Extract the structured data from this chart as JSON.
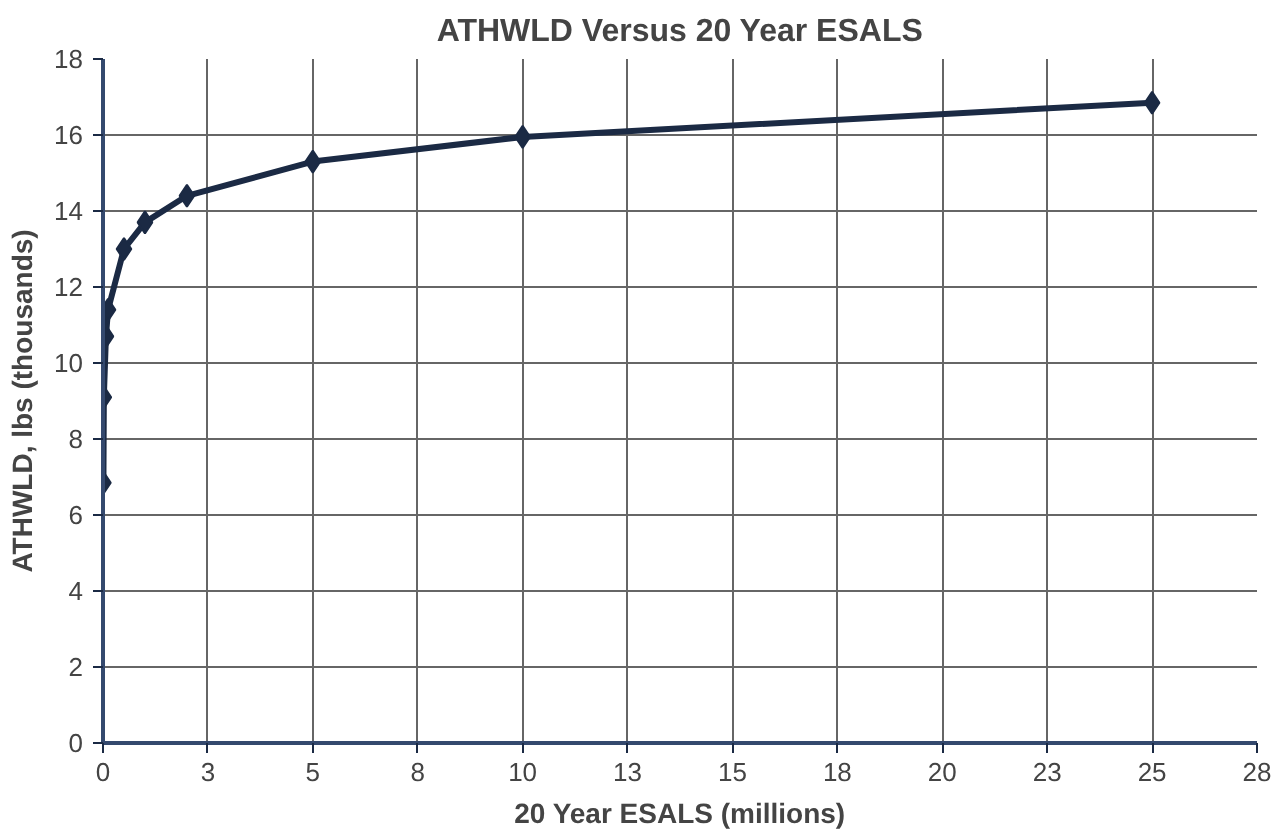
{
  "chart_data": {
    "type": "line",
    "title": "ATHWLD Versus 20 Year ESALS",
    "xlabel": "20 Year ESALS (millions)",
    "ylabel": "ATHWLD, lbs (thousands)",
    "x": [
      0.01,
      0.02,
      0.07,
      0.12,
      0.5,
      1,
      2,
      5,
      10,
      25
    ],
    "series": [
      {
        "color": "#1b2a44",
        "values": [
          6.85,
          9.1,
          10.7,
          11.4,
          13.0,
          13.7,
          14.4,
          15.3,
          15.95,
          16.85
        ]
      }
    ],
    "xlim": [
      0,
      27.5
    ],
    "ylim": [
      0,
      18
    ],
    "xticks": [
      0,
      {
        "value": 2.5,
        "label": "3"
      },
      5,
      {
        "value": 7.5,
        "label": "8"
      },
      10,
      {
        "value": 12.5,
        "label": "13"
      },
      15,
      {
        "value": 17.5,
        "label": "18"
      },
      20,
      {
        "value": 22.5,
        "label": "23"
      },
      25,
      {
        "value": 27.5,
        "label": "28"
      }
    ],
    "yticks": [
      0,
      2,
      4,
      6,
      8,
      10,
      12,
      14,
      16,
      18
    ],
    "grid": true,
    "marker": "diamond",
    "line_style": "solid"
  }
}
